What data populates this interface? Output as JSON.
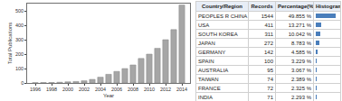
{
  "chart_data": {
    "type": "bar",
    "x": [
      1996,
      1997,
      1998,
      1999,
      2000,
      2001,
      2002,
      2003,
      2004,
      2005,
      2006,
      2007,
      2008,
      2009,
      2010,
      2011,
      2012,
      2013,
      2014
    ],
    "values": [
      2,
      3,
      3,
      5,
      8,
      10,
      15,
      25,
      40,
      60,
      80,
      100,
      125,
      170,
      200,
      240,
      300,
      370,
      540
    ],
    "color": "#a6a6a6",
    "xlabel": "Year",
    "ylabel": "Total Publications",
    "xlim": [
      1995,
      2015
    ],
    "ylim": [
      0,
      550
    ],
    "xticks": [
      1996,
      1998,
      2000,
      2002,
      2004,
      2006,
      2008,
      2010,
      2012,
      2014
    ],
    "yticks": [
      0,
      100,
      200,
      300,
      400,
      500
    ],
    "grid": false
  },
  "table": {
    "header": [
      "Country/Region",
      "Records",
      "Percentage(%)",
      "Histogram"
    ],
    "color": "#4a7ebb",
    "rows": [
      {
        "country": "PEOPLES R CHINA",
        "records": 1544,
        "percentage": {
          "value": 49.855,
          "label": "49.855 %"
        }
      },
      {
        "country": "USA",
        "records": 411,
        "percentage": {
          "value": 13.271,
          "label": "13.271 %"
        }
      },
      {
        "country": "SOUTH KOREA",
        "records": 311,
        "percentage": {
          "value": 10.042,
          "label": "10.042 %"
        }
      },
      {
        "country": "JAPAN",
        "records": 272,
        "percentage": {
          "value": 8.783,
          "label": "8.783 %"
        }
      },
      {
        "country": "GERMANY",
        "records": 142,
        "percentage": {
          "value": 4.585,
          "label": "4.585 %"
        }
      },
      {
        "country": "SPAIN",
        "records": 100,
        "percentage": {
          "value": 3.229,
          "label": "3.229 %"
        }
      },
      {
        "country": "AUSTRALIA",
        "records": 95,
        "percentage": {
          "value": 3.067,
          "label": "3.067 %"
        }
      },
      {
        "country": "TAIWAN",
        "records": 74,
        "percentage": {
          "value": 2.389,
          "label": "2.389 %"
        }
      },
      {
        "country": "FRANCE",
        "records": 72,
        "percentage": {
          "value": 2.325,
          "label": "2.325 %"
        }
      },
      {
        "country": "INDIA",
        "records": 71,
        "percentage": {
          "value": 2.293,
          "label": "2.293 %"
        }
      }
    ]
  }
}
